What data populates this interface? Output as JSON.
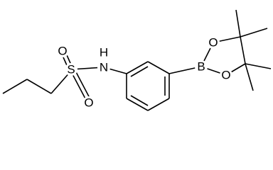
{
  "atoms": [
    {
      "label": "O"
    },
    {
      "label": "S"
    },
    {
      "label": "O"
    },
    {
      "label": "N"
    },
    {
      "label": "H"
    },
    {
      "label": "B"
    },
    {
      "label": "O"
    },
    {
      "label": "O"
    }
  ]
}
